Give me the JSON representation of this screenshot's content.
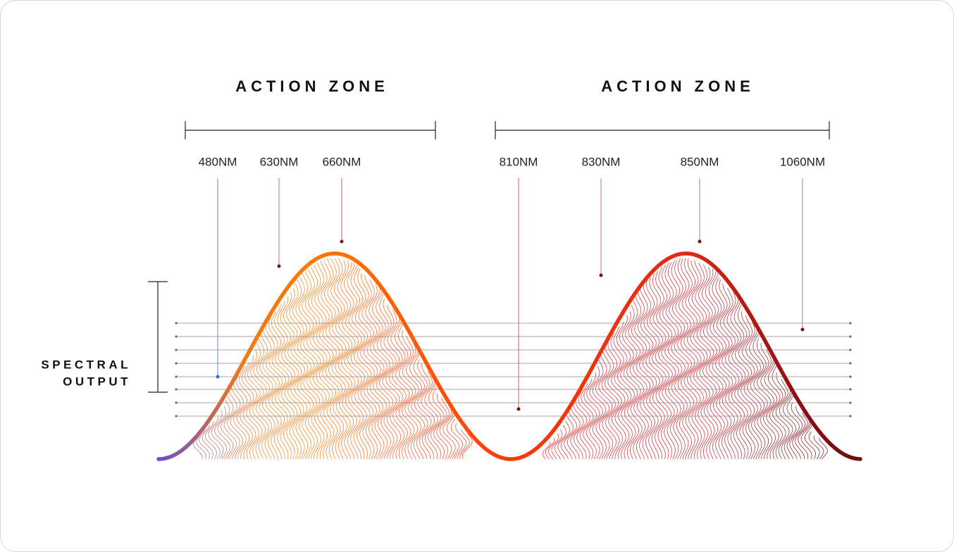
{
  "zones": [
    {
      "title": "ACTION ZONE"
    },
    {
      "title": "ACTION ZONE"
    }
  ],
  "wavelengths": [
    {
      "label": "480NM"
    },
    {
      "label": "630NM"
    },
    {
      "label": "660NM"
    },
    {
      "label": "810NM"
    },
    {
      "label": "830NM"
    },
    {
      "label": "850NM"
    },
    {
      "label": "1060NM"
    }
  ],
  "side_label": [
    "SPECTRAL",
    "OUTPUT"
  ]
}
